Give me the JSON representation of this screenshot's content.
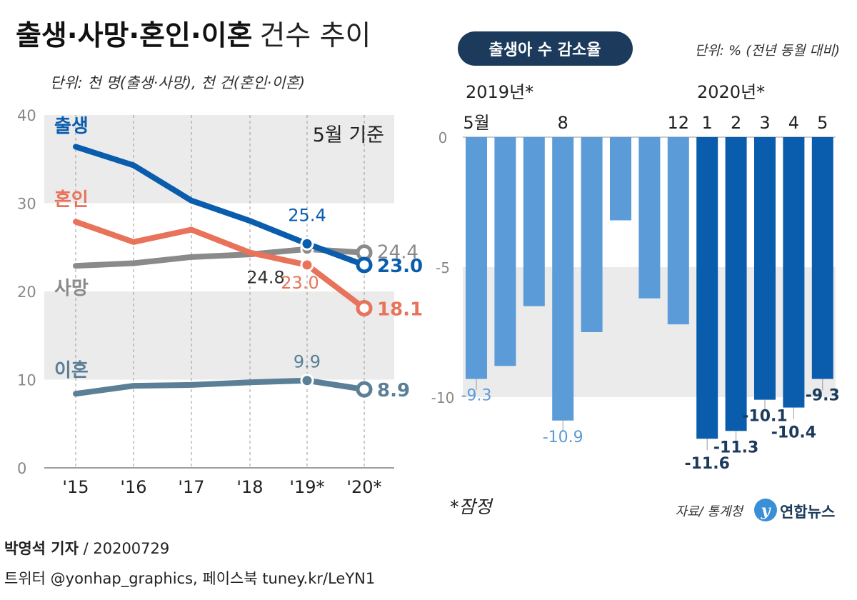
{
  "title_bold": "출생·사망·혼인·이혼",
  "title_light": "건수 추이",
  "left_unit": "단위: 천 명(출생·사망), 천 건(혼인·이혼)",
  "basis_label": "5월 기준",
  "right_title": "출생아 수 감소율",
  "right_unit": "단위: % (전년 동월 대비)",
  "footnote": "*잠정",
  "source": "자료/ 통계청",
  "logo_text": "연합뉴스",
  "reporter": "박영석 기자",
  "date": "20200729",
  "social": "트위터 @yonhap_graphics, 페이스북 tuney.kr/LeYN1",
  "colors": {
    "birth": "#0a5cad",
    "marriage": "#e8735a",
    "death": "#8a8a8a",
    "divorce": "#5a7f96",
    "bar_light": "#5b9bd8",
    "bar_dark": "#0a5cad",
    "title_pill": "#1c3b5c"
  },
  "chart_data": [
    {
      "type": "line",
      "title": "출생·사망·혼인·이혼 건수 추이",
      "ylabel": "단위: 천 명(출생·사망), 천 건(혼인·이혼)",
      "x": [
        "'15",
        "'16",
        "'17",
        "'18",
        "'19*",
        "'20*"
      ],
      "ylim": [
        0,
        40
      ],
      "yticks": [
        0,
        10,
        20,
        30,
        40
      ],
      "series": [
        {
          "name": "출생",
          "key": "birth",
          "values": [
            36.4,
            34.3,
            30.3,
            28.0,
            25.4,
            23.0
          ],
          "labels": [
            {
              "index": 4,
              "text": "25.4"
            },
            {
              "index": 5,
              "text": "23.0"
            }
          ]
        },
        {
          "name": "혼인",
          "key": "marriage",
          "values": [
            27.9,
            25.6,
            27.0,
            24.4,
            23.0,
            18.1
          ],
          "labels": [
            {
              "index": 4,
              "text": "23.0"
            },
            {
              "index": 5,
              "text": "18.1"
            }
          ]
        },
        {
          "name": "사망",
          "key": "death",
          "values": [
            22.9,
            23.2,
            23.9,
            24.2,
            24.8,
            24.4
          ],
          "labels": [
            {
              "index": 4,
              "text": "24.8"
            },
            {
              "index": 5,
              "text": "24.4"
            }
          ]
        },
        {
          "name": "이혼",
          "key": "divorce",
          "values": [
            8.4,
            9.3,
            9.4,
            9.7,
            9.9,
            8.9
          ],
          "labels": [
            {
              "index": 4,
              "text": "9.9"
            },
            {
              "index": 5,
              "text": "8.9"
            }
          ]
        }
      ]
    },
    {
      "type": "bar",
      "title": "출생아 수 감소율",
      "ylabel": "단위: % (전년 동월 대비)",
      "categories": [
        "2019-05",
        "2019-06",
        "2019-07",
        "2019-08",
        "2019-09",
        "2019-10",
        "2019-11",
        "2019-12",
        "2020-01",
        "2020-02",
        "2020-03",
        "2020-04",
        "2020-05"
      ],
      "values": [
        -9.3,
        -8.8,
        -6.5,
        -10.9,
        -7.5,
        -3.2,
        -6.2,
        -7.2,
        -11.6,
        -11.3,
        -10.1,
        -10.4,
        -9.3
      ],
      "tick_labels": [
        "5월",
        "",
        "",
        "8",
        "",
        "",
        "",
        "12",
        "1",
        "2",
        "3",
        "4",
        "5"
      ],
      "year_labels": [
        "2019년*",
        "2020년*"
      ],
      "value_labels": [
        "-9.3",
        "",
        "",
        "-10.9",
        "",
        "",
        "",
        "",
        "-11.6",
        "-11.3",
        "-10.1",
        "-10.4",
        "-9.3"
      ],
      "ylim": [
        -12,
        0
      ],
      "yticks": [
        0,
        -5,
        -10
      ],
      "ytick_labels": [
        "0",
        "-5",
        "-10"
      ]
    }
  ]
}
